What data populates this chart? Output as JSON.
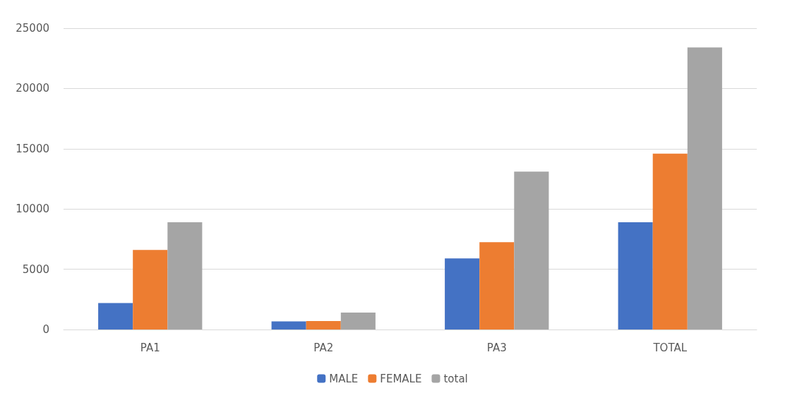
{
  "chart_data": {
    "type": "bar",
    "categories": [
      "PA1",
      "PA2",
      "PA3",
      "TOTAL"
    ],
    "series": [
      {
        "name": "MALE",
        "color": "#4472c4",
        "values": [
          2200,
          680,
          5900,
          8900
        ]
      },
      {
        "name": "FEMALE",
        "color": "#ed7d31",
        "values": [
          6600,
          700,
          7250,
          14600
        ]
      },
      {
        "name": "total",
        "color": "#a5a5a5",
        "values": [
          8900,
          1400,
          13100,
          23400
        ]
      }
    ],
    "ylim": [
      0,
      25000
    ],
    "yticks": [
      0,
      5000,
      10000,
      15000,
      20000,
      25000
    ],
    "grid": "y",
    "legend": "bottom"
  }
}
